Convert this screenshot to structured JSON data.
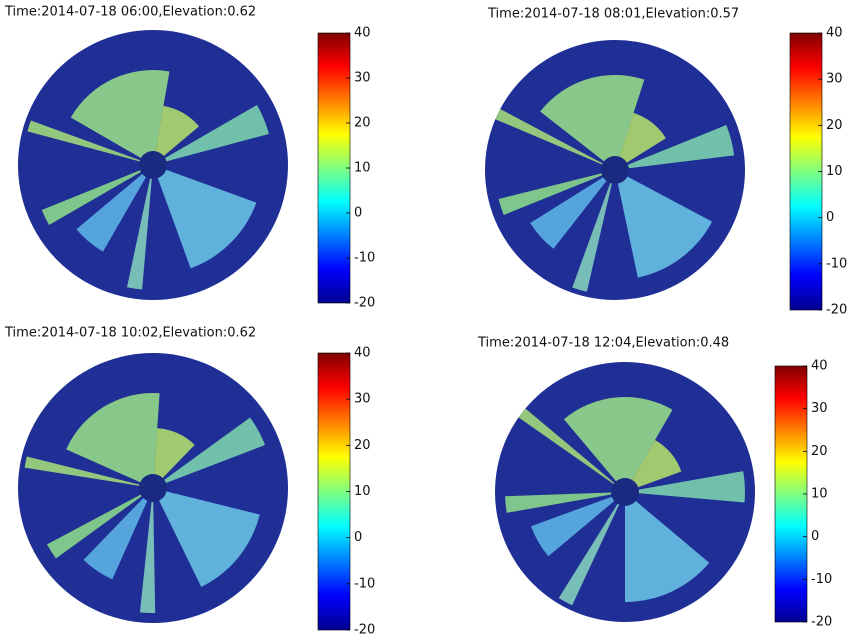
{
  "chart_data": [
    {
      "type": "polar-heatmap",
      "title": "Time:2014-07-18 06:00,Elevation:0.62",
      "colormap": "jet",
      "ylim": [
        -20,
        40
      ],
      "yticks": [
        -20,
        -10,
        0,
        10,
        20,
        30,
        40
      ]
    },
    {
      "type": "polar-heatmap",
      "title": "Time:2014-07-18 08:01,Elevation:0.57",
      "colormap": "jet",
      "ylim": [
        -20,
        40
      ],
      "yticks": [
        -20,
        -10,
        0,
        10,
        20,
        30,
        40
      ]
    },
    {
      "type": "polar-heatmap",
      "title": "Time:2014-07-18 10:02,Elevation:0.62",
      "colormap": "jet",
      "ylim": [
        -20,
        40
      ],
      "yticks": [
        -20,
        -10,
        0,
        10,
        20,
        30,
        40
      ]
    },
    {
      "type": "polar-heatmap",
      "title": "Time:2014-07-18 12:04,Elevation:0.48",
      "colormap": "jet",
      "ylim": [
        -20,
        40
      ],
      "yticks": [
        -20,
        -10,
        0,
        10,
        20,
        30,
        40
      ]
    }
  ]
}
